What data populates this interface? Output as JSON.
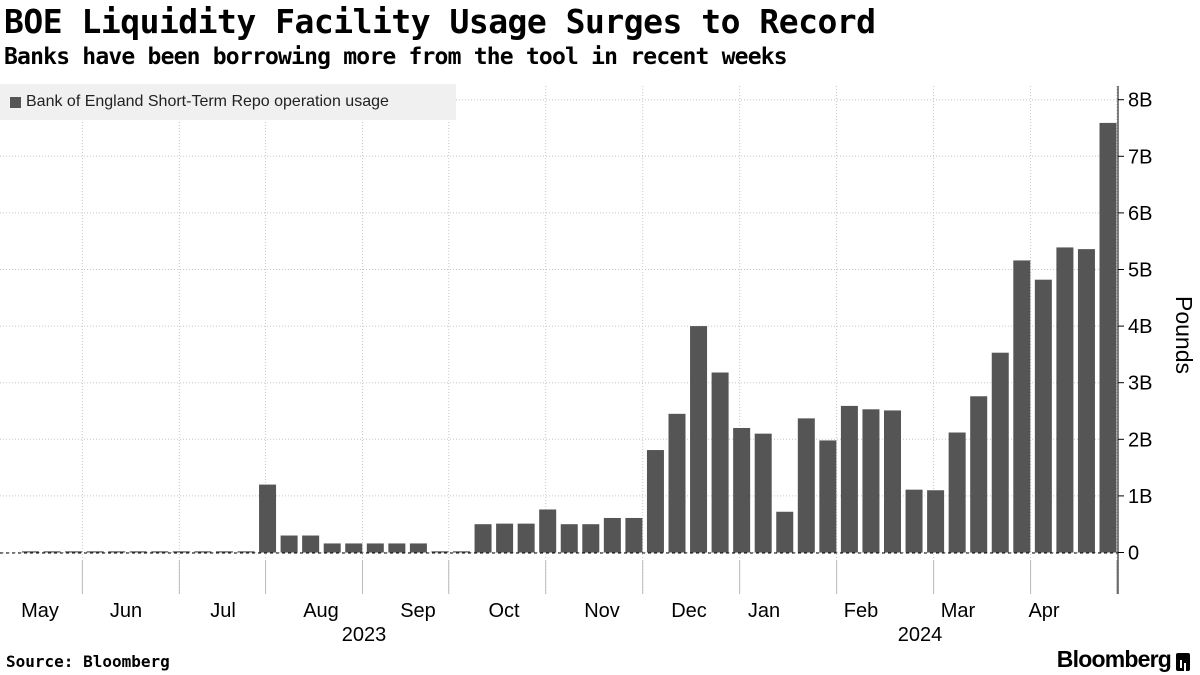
{
  "title": "BOE Liquidity Facility Usage Surges to Record",
  "subtitle": "Banks have been borrowing more from the tool in recent weeks",
  "source": "Source: Bloomberg",
  "brand": "Bloomberg",
  "colors": {
    "bar": "#555555",
    "grid": "#c8c8c8",
    "legend_bg": "#f0f0f0"
  },
  "chart_data": {
    "type": "bar",
    "title": "BOE Liquidity Facility Usage Surges to Record",
    "subtitle": "Banks have been borrowing more from the tool in recent weeks",
    "ylabel": "Pounds",
    "xlabel": "",
    "ylim": [
      -0.7,
      8.3
    ],
    "y_ticks": [
      {
        "value": 0,
        "label": "0"
      },
      {
        "value": 1,
        "label": "1B"
      },
      {
        "value": 2,
        "label": "2B"
      },
      {
        "value": 3,
        "label": "3B"
      },
      {
        "value": 4,
        "label": "4B"
      },
      {
        "value": 5,
        "label": "5B"
      },
      {
        "value": 6,
        "label": "6B"
      },
      {
        "value": 7,
        "label": "7B"
      },
      {
        "value": 8,
        "label": "8B"
      }
    ],
    "legend_position": "top-left",
    "grid": true,
    "series": [
      {
        "name": "Bank of England Short-Term Repo operation usage",
        "unit": "billion pounds",
        "values": [
          0.01,
          0.01,
          0.01,
          0.01,
          0.01,
          0.01,
          0.01,
          0.01,
          0.01,
          0.01,
          0.02,
          1.2,
          0.3,
          0.3,
          0.16,
          0.16,
          0.16,
          0.16,
          0.16,
          0.01,
          0.02,
          0.5,
          0.51,
          0.51,
          0.76,
          0.5,
          0.5,
          0.61,
          0.61,
          1.81,
          2.45,
          4.0,
          3.18,
          2.2,
          2.1,
          0.72,
          2.37,
          1.98,
          2.59,
          2.53,
          2.51,
          1.11,
          1.1,
          2.12,
          2.76,
          3.53,
          5.16,
          4.82,
          5.39,
          5.36,
          7.59
        ]
      }
    ],
    "x_month_labels": [
      "May",
      "Jun",
      "Jul",
      "Aug",
      "Sep",
      "Oct",
      "Nov",
      "Dec",
      "Jan",
      "Feb",
      "Mar",
      "Apr"
    ],
    "x_year_labels": [
      "2023",
      "2024"
    ]
  }
}
